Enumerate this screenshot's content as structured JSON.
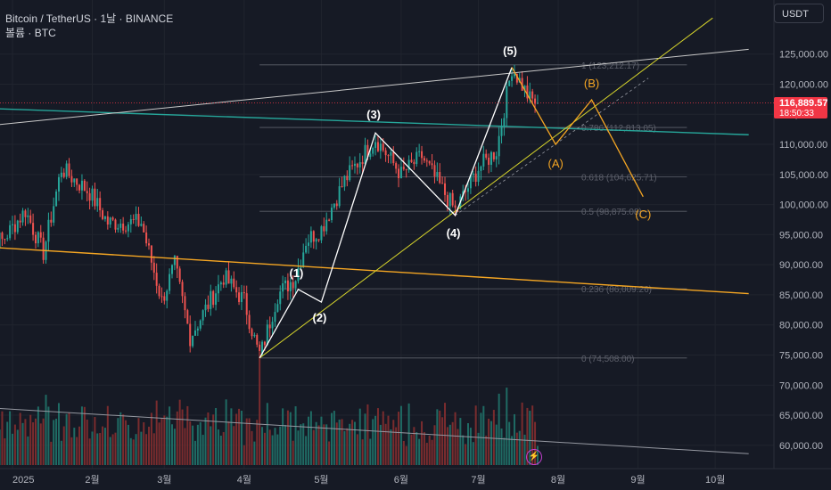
{
  "header": {
    "title": "Bitcoin / TetherUS · 1날 · BINANCE",
    "subtitle": "볼륨 · BTC"
  },
  "currency_button": "USDT",
  "price_tag": {
    "price": "116,889.57",
    "countdown": "18:50:33"
  },
  "colors": {
    "background": "#161a25",
    "up": "#26a69a",
    "down": "#ef5350",
    "vol_up": "#1f6b64",
    "vol_down": "#7a2c2e",
    "wave": "#ffffff",
    "projection": "#f5a623",
    "trend": "#d6d42b",
    "channel": "#26a69a",
    "support": "#f5a623",
    "price_tag": "#f23645"
  },
  "chart_data": {
    "type": "candlestick",
    "ylim": [
      57500,
      130000
    ],
    "y_ticks": [
      "125,000.00",
      "120,000.00",
      "115,000.00",
      "110,000.00",
      "105,000.00",
      "100,000.00",
      "95,000.00",
      "90,000.00",
      "85,000.00",
      "80,000.00",
      "75,000.00",
      "70,000.00",
      "65,000.00",
      "60,000.00"
    ],
    "y_tick_values": [
      125000,
      120000,
      115000,
      110000,
      105000,
      100000,
      95000,
      90000,
      85000,
      80000,
      75000,
      70000,
      65000,
      60000
    ],
    "x_ticks": [
      {
        "label": "2025",
        "date": "2025-01-01"
      },
      {
        "label": "2월",
        "date": "2025-02-01"
      },
      {
        "label": "3월",
        "date": "2025-03-01"
      },
      {
        "label": "4월",
        "date": "2025-04-01"
      },
      {
        "label": "5월",
        "date": "2025-05-01"
      },
      {
        "label": "6월",
        "date": "2025-06-01"
      },
      {
        "label": "7월",
        "date": "2025-07-01"
      },
      {
        "label": "8월",
        "date": "2025-08-01"
      },
      {
        "label": "9월",
        "date": "2025-09-01"
      },
      {
        "label": "10월",
        "date": "2025-10-01"
      }
    ],
    "price_path": [
      [
        "2024-12-20",
        95000
      ],
      [
        "2024-12-28",
        94000
      ],
      [
        "2025-01-06",
        99000
      ],
      [
        "2025-01-13",
        92000
      ],
      [
        "2025-01-20",
        106000
      ],
      [
        "2025-01-31",
        102000
      ],
      [
        "2025-02-07",
        97000
      ],
      [
        "2025-02-20",
        97000
      ],
      [
        "2025-02-28",
        84000
      ],
      [
        "2025-03-05",
        90000
      ],
      [
        "2025-03-11",
        78000
      ],
      [
        "2025-03-24",
        88000
      ],
      [
        "2025-04-01",
        84000
      ],
      [
        "2025-04-07",
        74508
      ],
      [
        "2025-04-14",
        85000
      ],
      [
        "2025-04-21",
        88000
      ],
      [
        "2025-04-25",
        94000
      ],
      [
        "2025-05-01",
        96000
      ],
      [
        "2025-05-10",
        104000
      ],
      [
        "2025-05-22",
        111000
      ],
      [
        "2025-06-01",
        105000
      ],
      [
        "2025-06-09",
        108000
      ],
      [
        "2025-06-22",
        99000
      ],
      [
        "2025-07-01",
        106000
      ],
      [
        "2025-07-08",
        109000
      ],
      [
        "2025-07-14",
        122800
      ],
      [
        "2025-07-21",
        117500
      ],
      [
        "2025-07-24",
        116889
      ]
    ],
    "volume_max": 4000,
    "volume_max_date": "2025-04-07",
    "fib_levels": [
      {
        "label": "1 (123,212.17)",
        "value": 123212
      },
      {
        "label": "0.786 (112,813.05)",
        "value": 112813
      },
      {
        "label": "0.618 (104,625.71)",
        "value": 104626
      },
      {
        "label": "0.5 (98,875.08)",
        "value": 98875
      },
      {
        "label": "0.236 (86,009.26)",
        "value": 86009
      },
      {
        "label": "0 (74,508.00)",
        "value": 74508
      }
    ],
    "elliott_waves": [
      {
        "label": "(1)",
        "date": "2025-04-22",
        "price": 85900
      },
      {
        "label": "(2)",
        "date": "2025-05-01",
        "price": 83800
      },
      {
        "label": "(3)",
        "date": "2025-05-22",
        "price": 111900
      },
      {
        "label": "(4)",
        "date": "2025-06-22",
        "price": 98200
      },
      {
        "label": "(5)",
        "date": "2025-07-14",
        "price": 122800
      }
    ],
    "wave_start": {
      "date": "2025-04-07",
      "price": 74508
    },
    "abc_projection": [
      {
        "label": "",
        "date": "2025-07-14",
        "price": 122800
      },
      {
        "label": "(A)",
        "date": "2025-07-31",
        "price": 110000
      },
      {
        "label": "(B)",
        "date": "2025-08-14",
        "price": 117400
      },
      {
        "label": "(C)",
        "date": "2025-09-03",
        "price": 101300
      }
    ],
    "last_price": 116889.57
  }
}
